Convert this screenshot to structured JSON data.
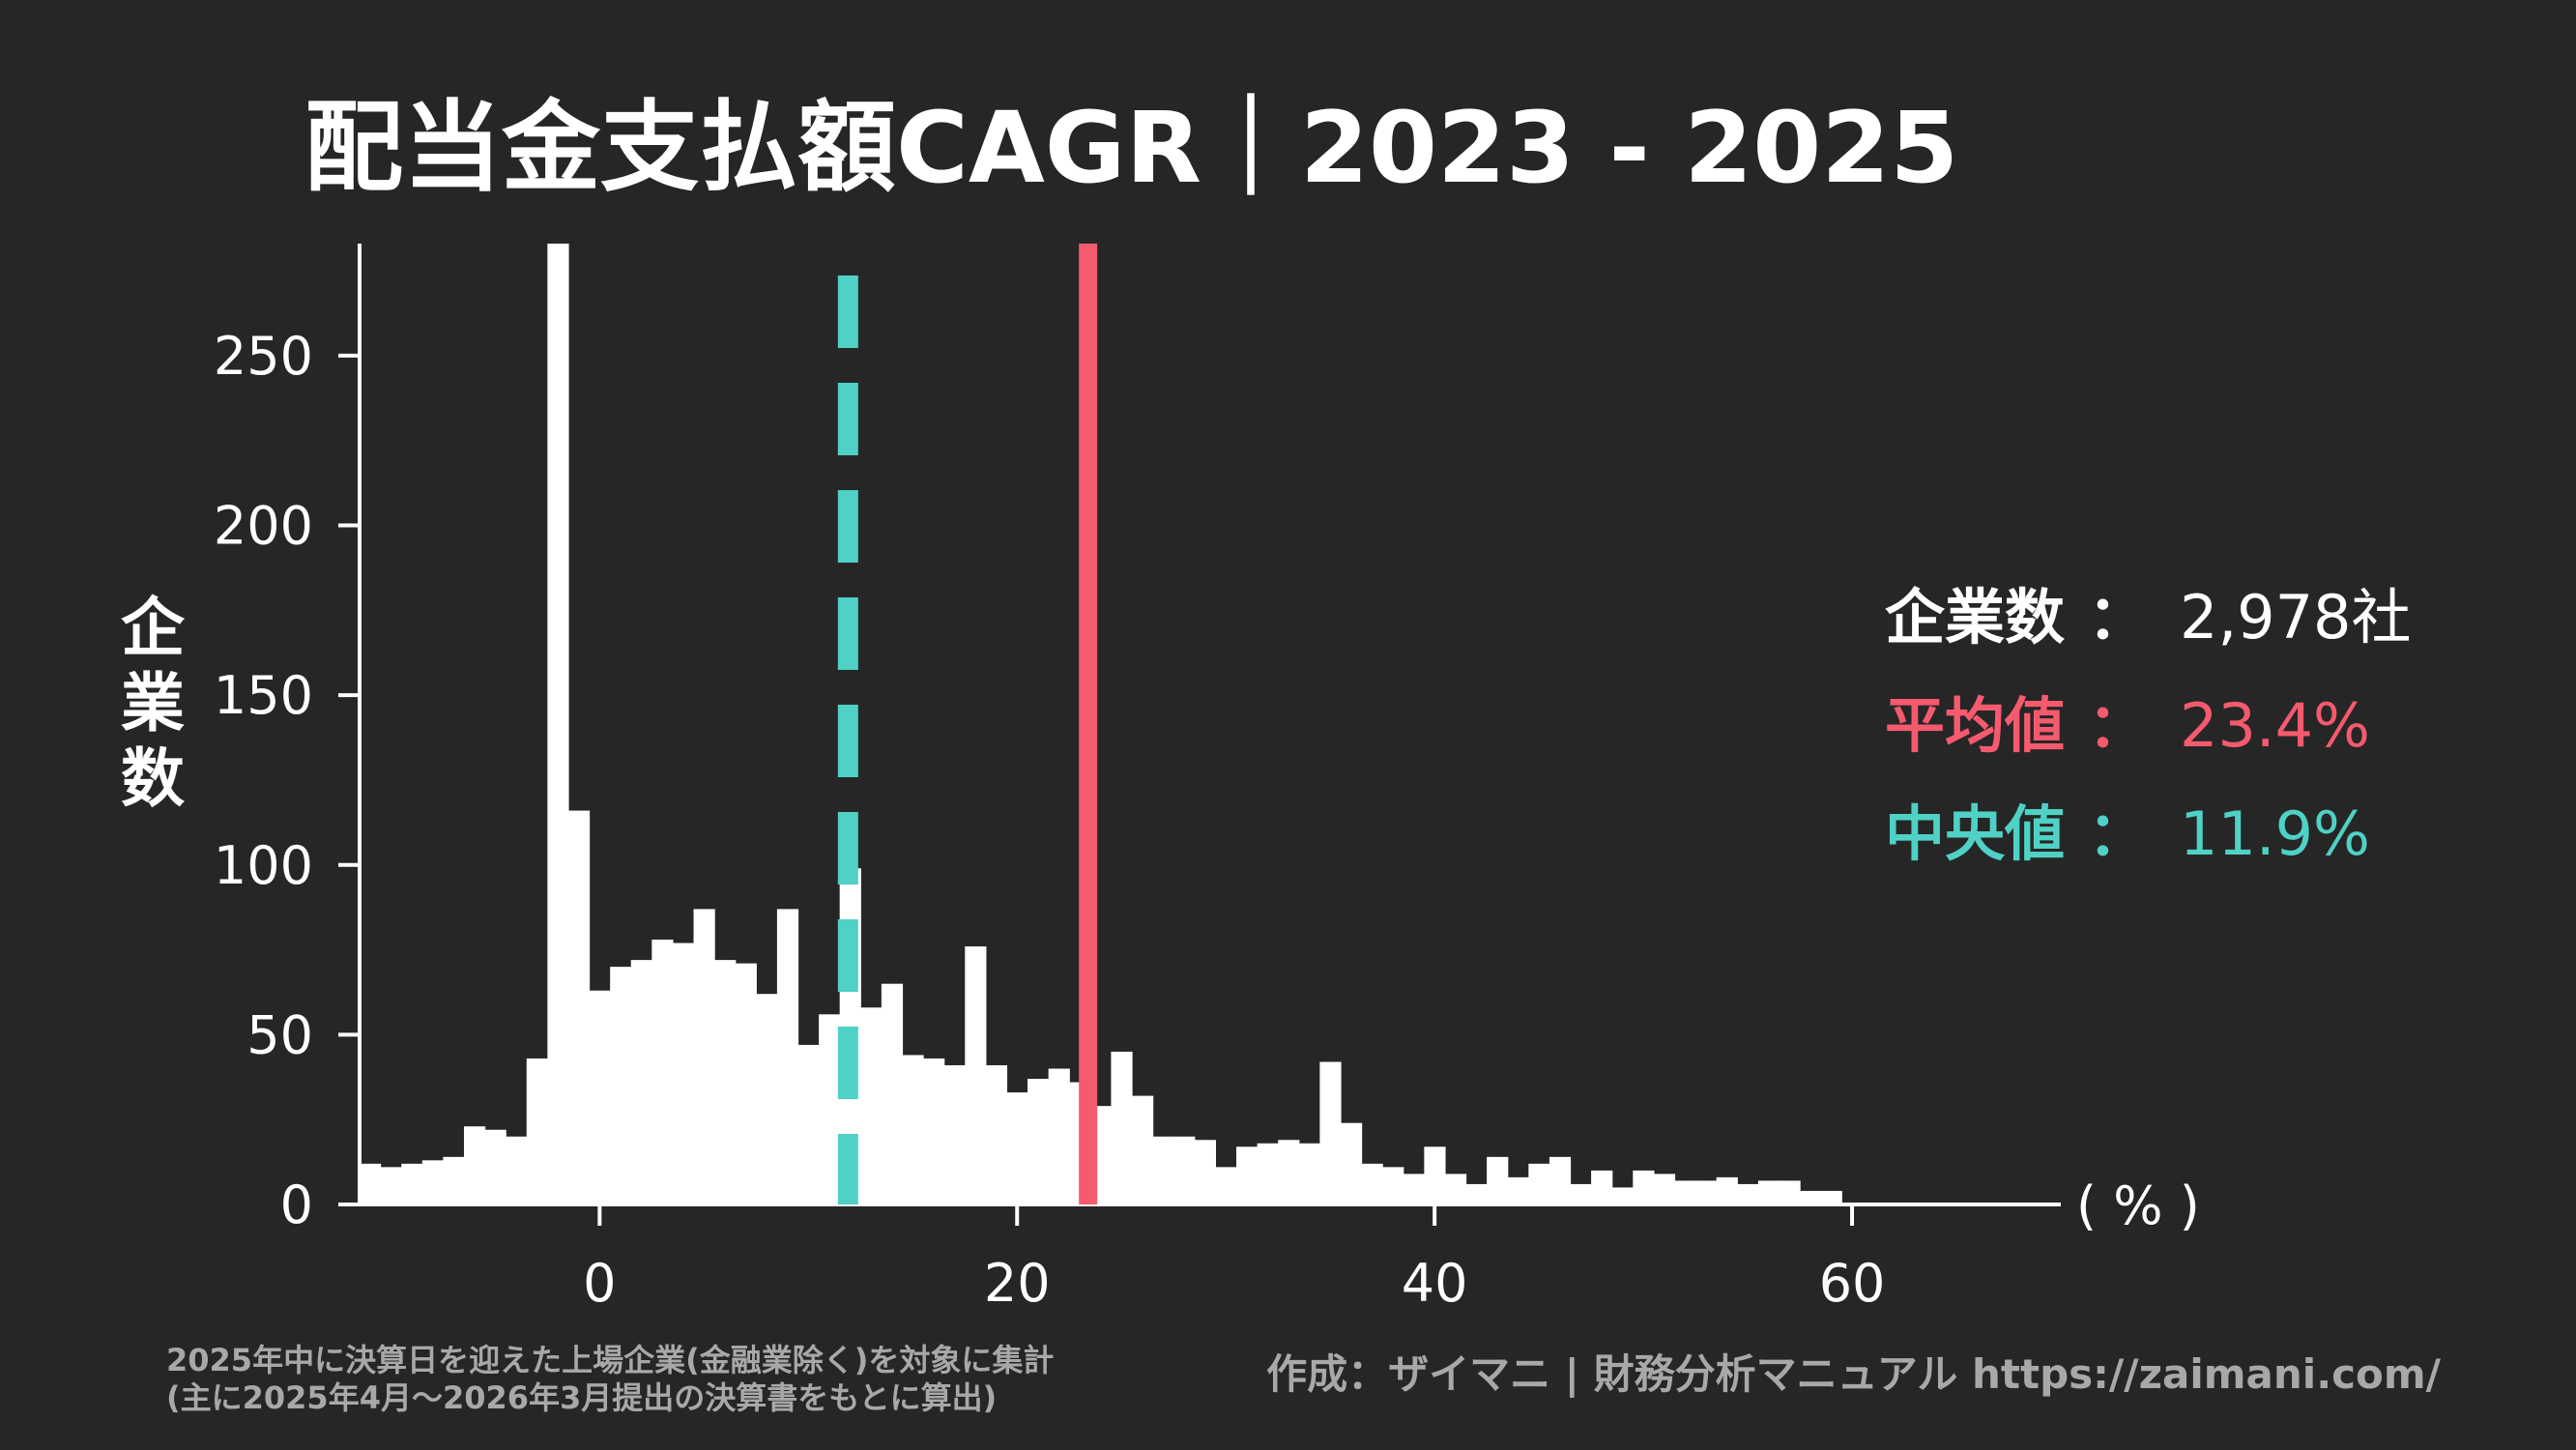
{
  "chart_data": {
    "type": "bar",
    "title": "配当金支払額CAGR｜2023 - 2025",
    "ylabel": "企業数",
    "xunit": "( % )",
    "bin_width": 1,
    "x_start": -11.5,
    "xlim": [
      -11.5,
      70
    ],
    "ylim": [
      0,
      283
    ],
    "xticks": [
      0,
      20,
      40,
      60
    ],
    "yticks": [
      0,
      50,
      100,
      150,
      200,
      250
    ],
    "bar_color": "#ffffff",
    "values": [
      12,
      11,
      12,
      13,
      14,
      23,
      22,
      20,
      43,
      283,
      116,
      63,
      70,
      72,
      78,
      77,
      87,
      72,
      71,
      62,
      87,
      47,
      56,
      99,
      58,
      65,
      44,
      43,
      41,
      76,
      41,
      33,
      37,
      40,
      36,
      29,
      45,
      32,
      20,
      20,
      19,
      11,
      17,
      18,
      19,
      18,
      42,
      24,
      12,
      11,
      9,
      17,
      9,
      6,
      14,
      8,
      12,
      14,
      6,
      10,
      5,
      10,
      9,
      7,
      7,
      8,
      6,
      7,
      7,
      4,
      4
    ],
    "mean": {
      "label": "平均値",
      "value": 23.4,
      "text": "23.4%",
      "color": "#f55a6e"
    },
    "median": {
      "label": "中央値",
      "value": 11.9,
      "text": "11.9%",
      "color": "#4fd1c5"
    },
    "count": {
      "label": "企業数",
      "text": "2,978社",
      "color": "#ffffff"
    },
    "colon": "："
  },
  "footer": {
    "note_line1": "2025年中に決算日を迎えた上場企業(金融業除く)を対象に集計",
    "note_line2": "(主に2025年4月〜2026年3月提出の決算書をもとに算出)",
    "credit": "作成：ザイマニ | 財務分析マニュアル https://zaimani.com/"
  }
}
